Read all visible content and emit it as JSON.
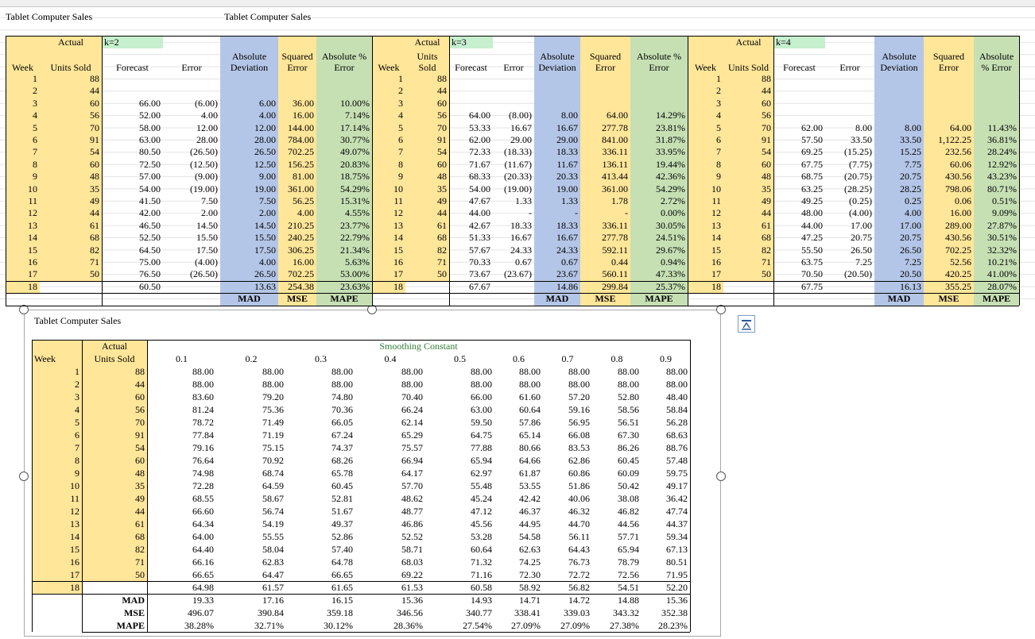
{
  "sheet": {
    "title_left": "Tablet Computer Sales",
    "title_right": "Tablet Computer Sales"
  },
  "moving_average": [
    {
      "row1": [
        "Actual",
        "k=2"
      ],
      "headers": [
        "Week",
        "Units Sold",
        "Forecast",
        "Error",
        "Absolute Deviation",
        "Squared Error",
        "Absolute % Error"
      ],
      "rows": [
        [
          1,
          88
        ],
        [
          2,
          44
        ],
        [
          3,
          60,
          "66.00",
          "(6.00)",
          "6.00",
          "36.00",
          "10.00%"
        ],
        [
          4,
          56,
          "52.00",
          "4.00",
          "4.00",
          "16.00",
          "7.14%"
        ],
        [
          5,
          70,
          "58.00",
          "12.00",
          "12.00",
          "144.00",
          "17.14%"
        ],
        [
          6,
          91,
          "63.00",
          "28.00",
          "28.00",
          "784.00",
          "30.77%"
        ],
        [
          7,
          54,
          "80.50",
          "(26.50)",
          "26.50",
          "702.25",
          "49.07%"
        ],
        [
          8,
          60,
          "72.50",
          "(12.50)",
          "12.50",
          "156.25",
          "20.83%"
        ],
        [
          9,
          48,
          "57.00",
          "(9.00)",
          "9.00",
          "81.00",
          "18.75%"
        ],
        [
          10,
          35,
          "54.00",
          "(19.00)",
          "19.00",
          "361.00",
          "54.29%"
        ],
        [
          11,
          49,
          "41.50",
          "7.50",
          "7.50",
          "56.25",
          "15.31%"
        ],
        [
          12,
          44,
          "42.00",
          "2.00",
          "2.00",
          "4.00",
          "4.55%"
        ],
        [
          13,
          61,
          "46.50",
          "14.50",
          "14.50",
          "210.25",
          "23.77%"
        ],
        [
          14,
          68,
          "52.50",
          "15.50",
          "15.50",
          "240.25",
          "22.79%"
        ],
        [
          15,
          82,
          "64.50",
          "17.50",
          "17.50",
          "306.25",
          "21.34%"
        ],
        [
          16,
          71,
          "75.00",
          "(4.00)",
          "4.00",
          "16.00",
          "5.63%"
        ],
        [
          17,
          50,
          "76.50",
          "(26.50)",
          "26.50",
          "702.25",
          "53.00%"
        ],
        [
          18,
          null,
          "60.50"
        ]
      ],
      "summary": [
        "13.63",
        "254.38",
        "23.63%"
      ],
      "summary_labels": [
        "MAD",
        "MSE",
        "MAPE"
      ]
    },
    {
      "row1": [
        "Actual",
        "k=3"
      ],
      "headers": [
        "Week",
        "Units Sold",
        "Forecast",
        "Error",
        "Absolute Deviation",
        "Squared Error",
        "Absolute % Error"
      ],
      "rows": [
        [
          1,
          88
        ],
        [
          2,
          44
        ],
        [
          3,
          60
        ],
        [
          4,
          56,
          "64.00",
          "(8.00)",
          "8.00",
          "64.00",
          "14.29%"
        ],
        [
          5,
          70,
          "53.33",
          "16.67",
          "16.67",
          "277.78",
          "23.81%"
        ],
        [
          6,
          91,
          "62.00",
          "29.00",
          "29.00",
          "841.00",
          "31.87%"
        ],
        [
          7,
          54,
          "72.33",
          "(18.33)",
          "18.33",
          "336.11",
          "33.95%"
        ],
        [
          8,
          60,
          "71.67",
          "(11.67)",
          "11.67",
          "136.11",
          "19.44%"
        ],
        [
          9,
          48,
          "68.33",
          "(20.33)",
          "20.33",
          "413.44",
          "42.36%"
        ],
        [
          10,
          35,
          "54.00",
          "(19.00)",
          "19.00",
          "361.00",
          "54.29%"
        ],
        [
          11,
          49,
          "47.67",
          "1.33",
          "1.33",
          "1.78",
          "2.72%"
        ],
        [
          12,
          44,
          "44.00",
          "-",
          "-",
          "-",
          "0.00%"
        ],
        [
          13,
          61,
          "42.67",
          "18.33",
          "18.33",
          "336.11",
          "30.05%"
        ],
        [
          14,
          68,
          "51.33",
          "16.67",
          "16.67",
          "277.78",
          "24.51%"
        ],
        [
          15,
          82,
          "57.67",
          "24.33",
          "24.33",
          "592.11",
          "29.67%"
        ],
        [
          16,
          71,
          "70.33",
          "0.67",
          "0.67",
          "0.44",
          "0.94%"
        ],
        [
          17,
          50,
          "73.67",
          "(23.67)",
          "23.67",
          "560.11",
          "47.33%"
        ],
        [
          18,
          null,
          "67.67"
        ]
      ],
      "summary": [
        "14.86",
        "299.84",
        "25.37%"
      ],
      "summary_labels": [
        "MAD",
        "MSE",
        "MAPE"
      ]
    },
    {
      "row1": [
        "Actual",
        "k=4"
      ],
      "headers": [
        "Week",
        "Units Sold",
        "Forecast",
        "Error",
        "Absolute Deviation",
        "Squared Error",
        "Absolute % Error"
      ],
      "rows": [
        [
          1,
          88
        ],
        [
          2,
          44
        ],
        [
          3,
          60
        ],
        [
          4,
          56
        ],
        [
          5,
          70,
          "62.00",
          "8.00",
          "8.00",
          "64.00",
          "11.43%"
        ],
        [
          6,
          91,
          "57.50",
          "33.50",
          "33.50",
          "1,122.25",
          "36.81%"
        ],
        [
          7,
          54,
          "69.25",
          "(15.25)",
          "15.25",
          "232.56",
          "28.24%"
        ],
        [
          8,
          60,
          "67.75",
          "(7.75)",
          "7.75",
          "60.06",
          "12.92%"
        ],
        [
          9,
          48,
          "68.75",
          "(20.75)",
          "20.75",
          "430.56",
          "43.23%"
        ],
        [
          10,
          35,
          "63.25",
          "(28.25)",
          "28.25",
          "798.06",
          "80.71%"
        ],
        [
          11,
          49,
          "49.25",
          "(0.25)",
          "0.25",
          "0.06",
          "0.51%"
        ],
        [
          12,
          44,
          "48.00",
          "(4.00)",
          "4.00",
          "16.00",
          "9.09%"
        ],
        [
          13,
          61,
          "44.00",
          "17.00",
          "17.00",
          "289.00",
          "27.87%"
        ],
        [
          14,
          68,
          "47.25",
          "20.75",
          "20.75",
          "430.56",
          "30.51%"
        ],
        [
          15,
          82,
          "55.50",
          "26.50",
          "26.50",
          "702.25",
          "32.32%"
        ],
        [
          16,
          71,
          "63.75",
          "7.25",
          "7.25",
          "52.56",
          "10.21%"
        ],
        [
          17,
          50,
          "70.50",
          "(20.50)",
          "20.50",
          "420.25",
          "41.00%"
        ],
        [
          18,
          null,
          "67.75"
        ]
      ],
      "summary": [
        "16.13",
        "355.25",
        "28.07%"
      ],
      "summary_labels": [
        "MAD",
        "MSE",
        "MAPE"
      ]
    }
  ],
  "exp_smoothing": {
    "title": "Tablet Computer Sales",
    "week_header": "Week",
    "actual_header": [
      "Actual",
      "Units Sold"
    ],
    "group_header": "Smoothing Constant",
    "alphas": [
      0.1,
      0.2,
      0.3,
      0.4,
      0.5,
      0.6,
      0.7,
      0.8,
      0.9
    ],
    "rows": [
      [
        1,
        88,
        "88.00",
        "88.00",
        "88.00",
        "88.00",
        "88.00",
        "88.00",
        "88.00",
        "88.00",
        "88.00"
      ],
      [
        2,
        44,
        "88.00",
        "88.00",
        "88.00",
        "88.00",
        "88.00",
        "88.00",
        "88.00",
        "88.00",
        "88.00"
      ],
      [
        3,
        60,
        "83.60",
        "79.20",
        "74.80",
        "70.40",
        "66.00",
        "61.60",
        "57.20",
        "52.80",
        "48.40"
      ],
      [
        4,
        56,
        "81.24",
        "75.36",
        "70.36",
        "66.24",
        "63.00",
        "60.64",
        "59.16",
        "58.56",
        "58.84"
      ],
      [
        5,
        70,
        "78.72",
        "71.49",
        "66.05",
        "62.14",
        "59.50",
        "57.86",
        "56.95",
        "56.51",
        "56.28"
      ],
      [
        6,
        91,
        "77.84",
        "71.19",
        "67.24",
        "65.29",
        "64.75",
        "65.14",
        "66.08",
        "67.30",
        "68.63"
      ],
      [
        7,
        54,
        "79.16",
        "75.15",
        "74.37",
        "75.57",
        "77.88",
        "80.66",
        "83.53",
        "86.26",
        "88.76"
      ],
      [
        8,
        60,
        "76.64",
        "70.92",
        "68.26",
        "66.94",
        "65.94",
        "64.66",
        "62.86",
        "60.45",
        "57.48"
      ],
      [
        9,
        48,
        "74.98",
        "68.74",
        "65.78",
        "64.17",
        "62.97",
        "61.87",
        "60.86",
        "60.09",
        "59.75"
      ],
      [
        10,
        35,
        "72.28",
        "64.59",
        "60.45",
        "57.70",
        "55.48",
        "53.55",
        "51.86",
        "50.42",
        "49.17"
      ],
      [
        11,
        49,
        "68.55",
        "58.67",
        "52.81",
        "48.62",
        "45.24",
        "42.42",
        "40.06",
        "38.08",
        "36.42"
      ],
      [
        12,
        44,
        "66.60",
        "56.74",
        "51.67",
        "48.77",
        "47.12",
        "46.37",
        "46.32",
        "46.82",
        "47.74"
      ],
      [
        13,
        61,
        "64.34",
        "54.19",
        "49.37",
        "46.86",
        "45.56",
        "44.95",
        "44.70",
        "44.56",
        "44.37"
      ],
      [
        14,
        68,
        "64.00",
        "55.55",
        "52.86",
        "52.52",
        "53.28",
        "54.58",
        "56.11",
        "57.71",
        "59.34"
      ],
      [
        15,
        82,
        "64.40",
        "58.04",
        "57.40",
        "58.71",
        "60.64",
        "62.63",
        "64.43",
        "65.94",
        "67.13"
      ],
      [
        16,
        71,
        "66.16",
        "62.83",
        "64.78",
        "68.03",
        "71.32",
        "74.25",
        "76.73",
        "78.79",
        "80.51"
      ],
      [
        17,
        50,
        "66.65",
        "64.47",
        "66.65",
        "69.22",
        "71.16",
        "72.30",
        "72.72",
        "72.56",
        "71.95"
      ],
      [
        18,
        null,
        "64.98",
        "61.57",
        "61.65",
        "61.53",
        "60.58",
        "58.92",
        "56.82",
        "54.51",
        "52.20"
      ]
    ],
    "metrics": [
      {
        "label": "MAD",
        "values": [
          "19.33",
          "17.16",
          "16.15",
          "15.36",
          "14.93",
          "14.71",
          "14.72",
          "14.88",
          "15.36"
        ]
      },
      {
        "label": "MSE",
        "values": [
          "496.07",
          "390.84",
          "359.18",
          "346.56",
          "340.77",
          "338.41",
          "339.03",
          "343.32",
          "352.38"
        ]
      },
      {
        "label": "MAPE",
        "values": [
          "38.28%",
          "32.71%",
          "30.12%",
          "28.36%",
          "27.54%",
          "27.09%",
          "27.09%",
          "27.38%",
          "28.23%"
        ]
      }
    ]
  }
}
